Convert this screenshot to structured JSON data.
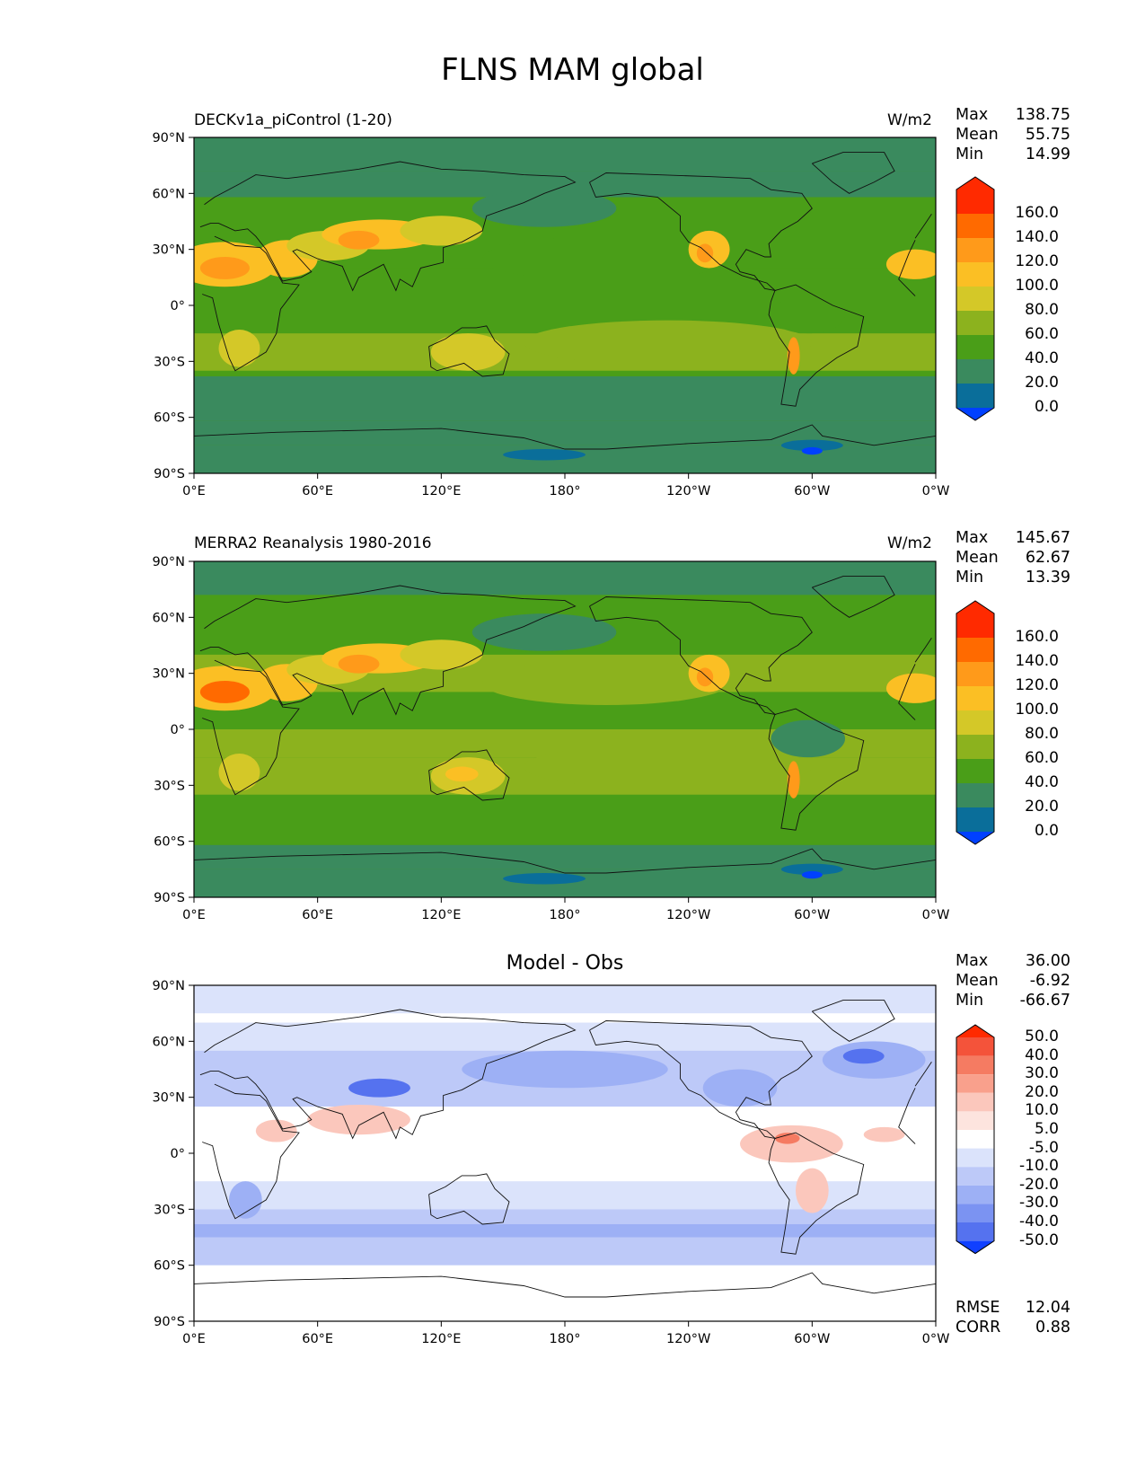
{
  "figure": {
    "title": "FLNS MAM global"
  },
  "axes": {
    "lat_ticks": [
      "90°N",
      "60°N",
      "30°N",
      "0°",
      "30°S",
      "60°S",
      "90°S"
    ],
    "lon_ticks": [
      "0°E",
      "60°E",
      "120°E",
      "180°",
      "120°W",
      "60°W",
      "0°W"
    ]
  },
  "panels": [
    {
      "left_title": "DECKv1a_piControl (1-20)",
      "right_title": "W/m2",
      "center_title": "",
      "stats": {
        "max_label": "Max",
        "max_value": "138.75",
        "mean_label": "Mean",
        "mean_value": "55.75",
        "min_label": "Min",
        "min_value": "14.99"
      }
    },
    {
      "left_title": "MERRA2 Reanalysis 1980-2016",
      "right_title": "W/m2",
      "center_title": "",
      "stats": {
        "max_label": "Max",
        "max_value": "145.67",
        "mean_label": "Mean",
        "mean_value": "62.67",
        "min_label": "Min",
        "min_value": "13.39"
      }
    },
    {
      "left_title": "",
      "right_title": "",
      "center_title": "Model - Obs",
      "stats": {
        "max_label": "Max",
        "max_value": "36.00",
        "mean_label": "Mean",
        "mean_value": "-6.92",
        "min_label": "Min",
        "min_value": "-66.67"
      },
      "metrics": {
        "rmse_label": "RMSE",
        "rmse_value": "12.04",
        "corr_label": "CORR",
        "corr_value": "0.88"
      }
    }
  ],
  "colorbars": {
    "field": {
      "labels": [
        "160.0",
        "140.0",
        "120.0",
        "100.0",
        "80.0",
        "60.0",
        "40.0",
        "20.0",
        "0.0"
      ],
      "colors_top_to_bottom": [
        "#ff2a00",
        "#ff6a00",
        "#ff9a1a",
        "#fbbf24",
        "#d4c828",
        "#8cb21e",
        "#4a9e18",
        "#3a8a5e",
        "#0a6e9a",
        "#0040ff"
      ]
    },
    "diff": {
      "labels": [
        "50.0",
        "40.0",
        "30.0",
        "20.0",
        "10.0",
        "5.0",
        "-5.0",
        "-10.0",
        "-20.0",
        "-30.0",
        "-40.0",
        "-50.0"
      ],
      "colors_top_to_bottom": [
        "#ff2a00",
        "#f4533a",
        "#f57b62",
        "#f9a08c",
        "#fbc7bc",
        "#fde4de",
        "#ffffff",
        "#dbe3fb",
        "#bdc9f8",
        "#9db0f5",
        "#7b93f2",
        "#5572ef",
        "#1040ff"
      ]
    }
  },
  "map_colors": {
    "ocean_high_lat": "#3a8a5e",
    "mid_green": "#4a9e18",
    "yellow_green": "#8cb21e",
    "yellow": "#d4c828",
    "orange_yellow": "#fbbf24",
    "orange": "#ff9a1a",
    "deep_orange": "#ff6a00",
    "teal": "#0a6e9a",
    "blue": "#0040ff",
    "diff_white": "#ffffff",
    "diff_light_blue": "#dbe3fb",
    "diff_blue": "#bdc9f8",
    "diff_mid_blue": "#9db0f5",
    "diff_dark_blue": "#5572ef",
    "diff_light_red": "#fbc7bc",
    "diff_red": "#f57b62"
  }
}
